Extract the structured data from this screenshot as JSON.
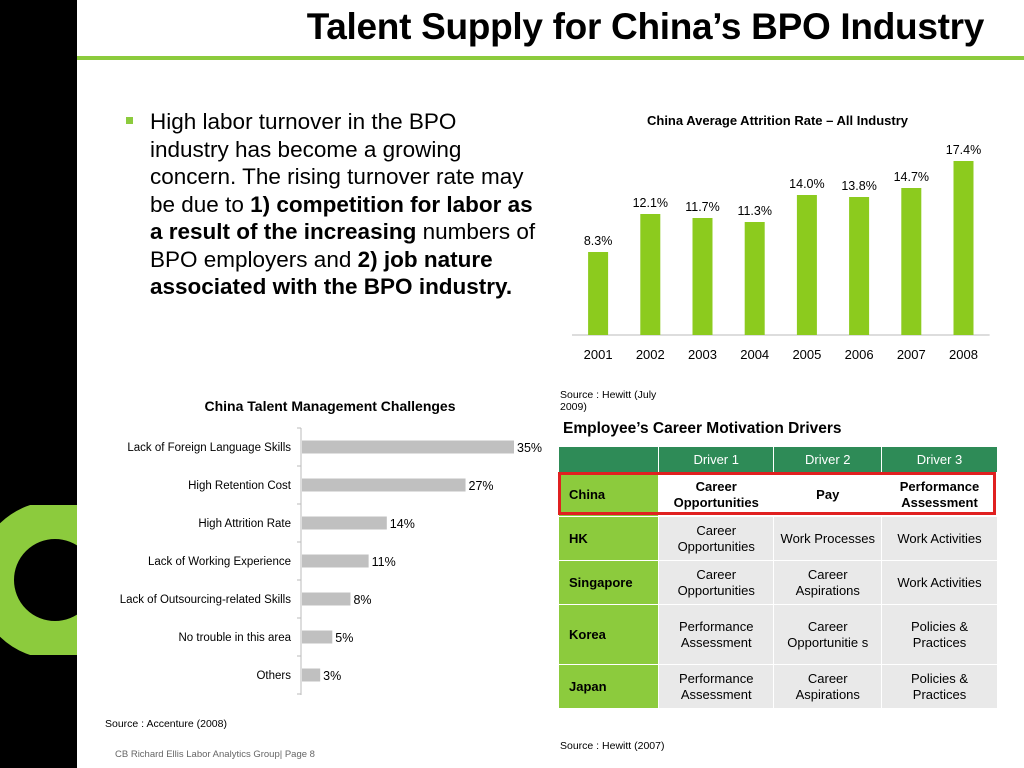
{
  "title": "Talent Supply for China’s BPO Industry",
  "bullet": {
    "t1": "High labor turnover in the BPO industry has become a growing concern. The rising turnover rate may be due to ",
    "b1": "1) competition for labor as a result of the increasing",
    "t2": " numbers of BPO employers and ",
    "b2": "2) job nature associated with the BPO industry."
  },
  "chart_data": [
    {
      "type": "bar",
      "title": "China Average Attrition Rate – All Industry",
      "categories": [
        "2001",
        "2002",
        "2003",
        "2004",
        "2005",
        "2006",
        "2007",
        "2008"
      ],
      "values": [
        8.3,
        12.1,
        11.7,
        11.3,
        14.0,
        13.8,
        14.7,
        17.4
      ],
      "labels": [
        "8.3%",
        "12.1%",
        "11.7%",
        "11.3%",
        "14.0%",
        "13.8%",
        "14.7%",
        "17.4%"
      ],
      "ylim": [
        0,
        18
      ],
      "color": "#8ccb1e",
      "grid": false,
      "source": "Source : Hewitt (July 2009)"
    },
    {
      "type": "bar",
      "orientation": "horizontal",
      "title": "China Talent Management Challenges",
      "categories": [
        "Lack of Foreign Language Skills",
        "High Retention Cost",
        "High Attrition Rate",
        "Lack of Working Experience",
        "Lack of Outsourcing-related Skills",
        "No trouble in this area",
        "Others"
      ],
      "values": [
        35,
        27,
        14,
        11,
        8,
        5,
        3
      ],
      "labels": [
        "35%",
        "27%",
        "14%",
        "11%",
        "8%",
        "5%",
        "3%"
      ],
      "xlim": [
        0,
        35
      ],
      "color": "#c0c0c0",
      "grid": false,
      "source": "Source : Accenture (2008)"
    },
    {
      "type": "table",
      "title": "Employee’s Career Motivation Drivers",
      "header": [
        "",
        "Driver 1",
        "Driver 2",
        "Driver 3"
      ],
      "rows": [
        {
          "country": "China",
          "d1": "Career Opportunities",
          "d2": "Pay",
          "d3": "Performance Assessment"
        },
        {
          "country": "HK",
          "d1": "Career Opportunities",
          "d2": "Work Processes",
          "d3": "Work Activities"
        },
        {
          "country": "Singapore",
          "d1": "Career Opportunities",
          "d2": "Career Aspirations",
          "d3": "Work Activities"
        },
        {
          "country": "Korea",
          "d1": "Performance Assessment",
          "d2": "Career Opportunitie s",
          "d3": "Policies & Practices"
        },
        {
          "country": "Japan",
          "d1": "Performance Assessment",
          "d2": "Career Aspirations",
          "d3": "Policies & Practices"
        }
      ],
      "highlighted_row": "China",
      "source": "Source : Hewitt (2007)"
    }
  ],
  "footer": "CB Richard Ellis Labor Analytics Group| Page 8",
  "colors": {
    "accent": "#8ccb3d",
    "table_header": "#2e8b57",
    "highlight": "#e02020"
  }
}
